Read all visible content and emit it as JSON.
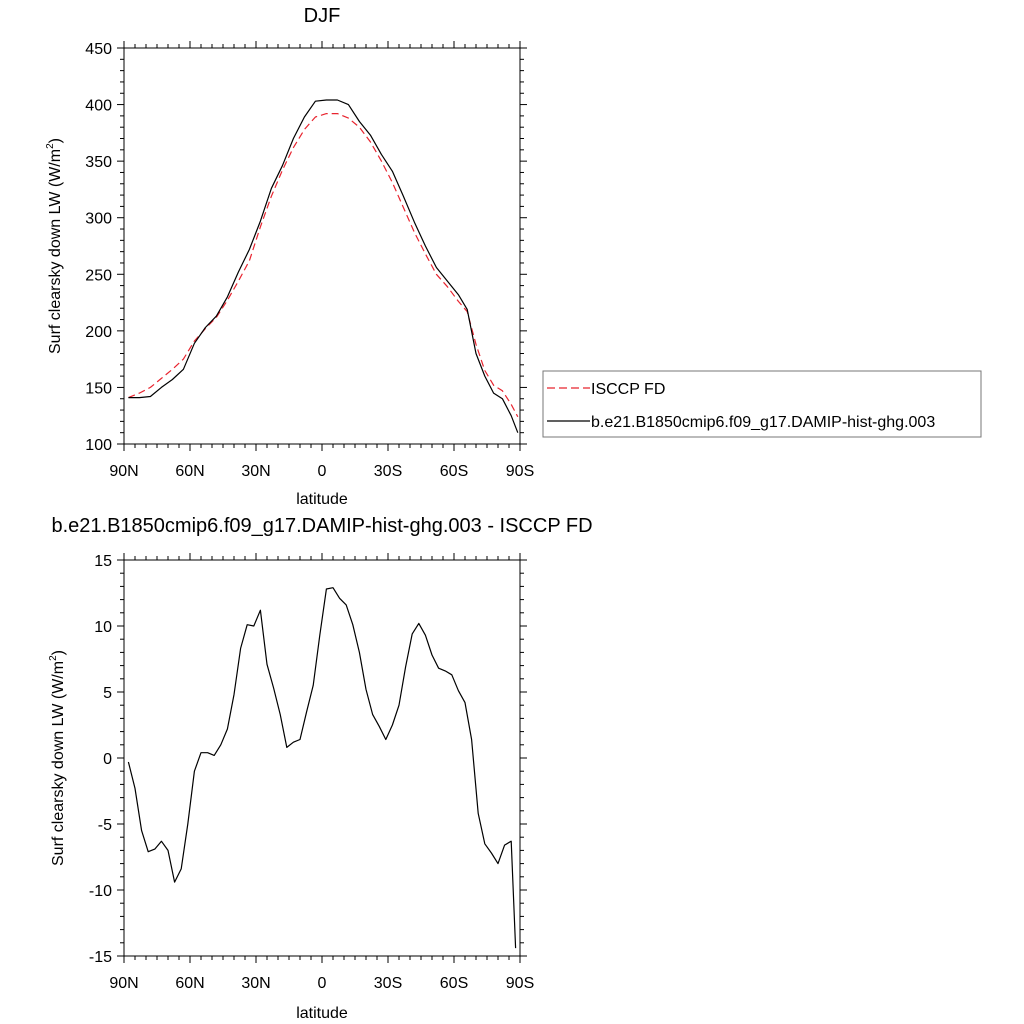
{
  "chart_data": [
    {
      "type": "line",
      "title": "DJF",
      "xlabel": "latitude",
      "ylabel_text": "Surf clearsky down LW (W/m",
      "ylabel_sup": "2",
      "ylabel_close": ")",
      "xlim": [
        -90,
        90
      ],
      "ylim": [
        100,
        450
      ],
      "y_ticks": [
        100,
        150,
        200,
        250,
        300,
        350,
        400,
        450
      ],
      "y_tick_labels": [
        "100",
        "150",
        "200",
        "250",
        "300",
        "350",
        "400",
        "450"
      ],
      "x_ticks": [
        -90,
        -60,
        -30,
        0,
        30,
        60,
        90
      ],
      "x_tick_labels": [
        "90N",
        "60N",
        "30N",
        "0",
        "30S",
        "60S",
        "90S"
      ],
      "legend_position": "right",
      "series": [
        {
          "name": "ISCCP FD",
          "color": "#e8242f",
          "dash": "dashed",
          "x": [
            -88,
            -83,
            -78,
            -73,
            -68,
            -63,
            -58,
            -53,
            -48,
            -43,
            -38,
            -33,
            -28,
            -23,
            -18,
            -13,
            -8,
            -3,
            2,
            7,
            12,
            17,
            22,
            27,
            32,
            37,
            42,
            47,
            52,
            57,
            62,
            66,
            70,
            74,
            78,
            82,
            86,
            89
          ],
          "values": [
            141,
            145,
            150,
            158,
            166,
            175,
            191,
            202,
            212,
            227,
            244,
            262,
            292,
            319,
            342,
            362,
            378,
            389,
            392,
            392,
            388,
            380,
            367,
            350,
            331,
            309,
            287,
            268,
            250,
            239,
            226,
            217,
            188,
            165,
            152,
            147,
            135,
            124
          ]
        },
        {
          "name": "b.e21.B1850cmip6.f09_g17.DAMIP-hist-ghg.003",
          "color": "#000000",
          "dash": "solid",
          "x": [
            -88,
            -83,
            -78,
            -73,
            -68,
            -63,
            -58,
            -53,
            -48,
            -43,
            -38,
            -33,
            -28,
            -23,
            -18,
            -13,
            -8,
            -3,
            2,
            7,
            12,
            17,
            22,
            27,
            32,
            37,
            42,
            47,
            52,
            57,
            62,
            66,
            70,
            74,
            78,
            82,
            86,
            89
          ],
          "values": [
            141,
            141,
            142,
            150,
            157,
            166,
            189,
            203,
            213,
            230,
            252,
            272,
            297,
            326,
            346,
            370,
            389,
            403,
            404,
            404,
            400,
            385,
            373,
            356,
            341,
            319,
            296,
            275,
            256,
            244,
            232,
            219,
            180,
            160,
            145,
            140,
            125,
            110
          ]
        }
      ]
    },
    {
      "type": "line",
      "title": "b.e21.B1850cmip6.f09_g17.DAMIP-hist-ghg.003 - ISCCP FD",
      "xlabel": "latitude",
      "ylabel_text": "Surf clearsky down LW (W/m",
      "ylabel_sup": "2",
      "ylabel_close": ")",
      "xlim": [
        -90,
        90
      ],
      "ylim": [
        -15,
        15
      ],
      "y_ticks": [
        -15,
        -10,
        -5,
        0,
        5,
        10,
        15
      ],
      "y_tick_labels": [
        "-15",
        "-10",
        "-5",
        "0",
        "5",
        "10",
        "15"
      ],
      "x_ticks": [
        -90,
        -60,
        -30,
        0,
        30,
        60,
        90
      ],
      "x_tick_labels": [
        "90N",
        "60N",
        "30N",
        "0",
        "30S",
        "60S",
        "90S"
      ],
      "series": [
        {
          "color": "#000000",
          "dash": "solid",
          "x": [
            -88,
            -85,
            -82,
            -79,
            -76,
            -73,
            -70,
            -67,
            -64,
            -61,
            -58,
            -55,
            -52,
            -49,
            -46,
            -43,
            -40,
            -37,
            -34,
            -31,
            -28,
            -25,
            -22,
            -19,
            -16,
            -13,
            -10,
            -7,
            -4,
            -1,
            2,
            5,
            8,
            11,
            14,
            17,
            20,
            23,
            26,
            29,
            32,
            35,
            38,
            41,
            44,
            47,
            50,
            53,
            56,
            59,
            62,
            65,
            68,
            71,
            74,
            77,
            80,
            83,
            86,
            88
          ],
          "values": [
            -0.3,
            -2.3,
            -5.5,
            -7.1,
            -6.9,
            -6.3,
            -7.0,
            -9.4,
            -8.4,
            -5.0,
            -1.0,
            0.4,
            0.4,
            0.2,
            1.0,
            2.2,
            4.8,
            8.3,
            10.1,
            10.0,
            11.2,
            7.1,
            5.3,
            3.3,
            0.8,
            1.2,
            1.4,
            3.5,
            5.5,
            9.3,
            12.8,
            12.9,
            12.1,
            11.6,
            10.1,
            8.0,
            5.2,
            3.3,
            2.4,
            1.4,
            2.5,
            4.0,
            6.9,
            9.4,
            10.2,
            9.3,
            7.8,
            6.8,
            6.6,
            6.3,
            5.1,
            4.2,
            1.4,
            -4.2,
            -6.5,
            -7.2,
            -8.0,
            -6.6,
            -6.3,
            -14.4
          ]
        }
      ]
    }
  ]
}
